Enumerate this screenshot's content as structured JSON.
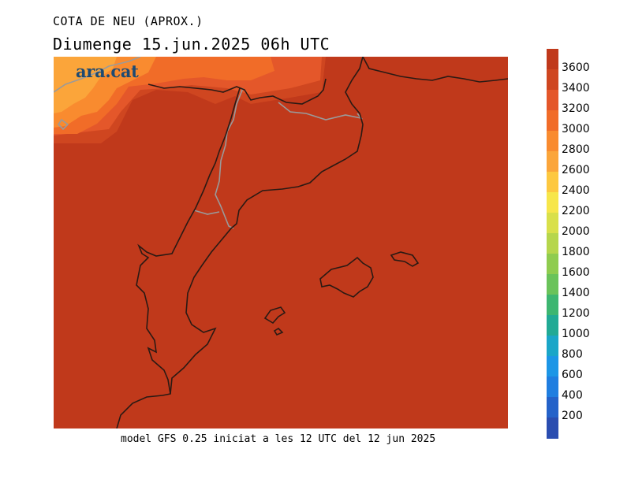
{
  "header": {
    "title": "COTA DE NEU (APROX.)",
    "subtitle": "Diumenge  15.jun.2025 06h UTC"
  },
  "map": {
    "logo": "ara.cat",
    "fill_color": "#c0391b",
    "warm_colors": [
      "#fba53a",
      "#f98b2f",
      "#f16c28",
      "#e4572a",
      "#cf4620"
    ],
    "coastline_color": "#2a1a14",
    "border_color": "#9a9a9a"
  },
  "caption": "model GFS 0.25 iniciat a les 12 UTC del 12 jun 2025",
  "legend": {
    "labels": [
      "3600",
      "3400",
      "3200",
      "3000",
      "2800",
      "2600",
      "2400",
      "2200",
      "2000",
      "1800",
      "1600",
      "1400",
      "1200",
      "1000",
      "800",
      "600",
      "400",
      "200"
    ],
    "colors": [
      "#c0391b",
      "#cf4620",
      "#e4572a",
      "#f16c28",
      "#f98b2f",
      "#fba53a",
      "#fdc840",
      "#f7e64a",
      "#d9e04a",
      "#b6d64c",
      "#8fcc4f",
      "#6ac35a",
      "#3db671",
      "#21aa95",
      "#1aa6c8",
      "#1c96e6",
      "#1f7ee0",
      "#2462c9",
      "#2a4db0"
    ]
  }
}
